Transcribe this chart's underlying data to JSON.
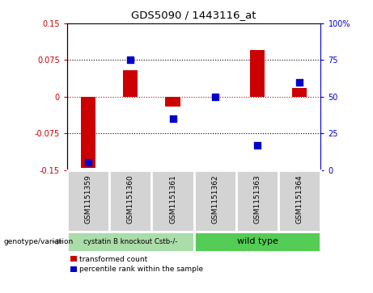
{
  "title": "GDS5090 / 1443116_at",
  "samples": [
    "GSM1151359",
    "GSM1151360",
    "GSM1151361",
    "GSM1151362",
    "GSM1151363",
    "GSM1151364"
  ],
  "red_values": [
    -0.145,
    0.055,
    -0.02,
    0.0,
    0.095,
    0.018
  ],
  "blue_values": [
    5,
    75,
    35,
    50,
    17,
    60
  ],
  "ylim_left": [
    -0.15,
    0.15
  ],
  "ylim_right": [
    0,
    100
  ],
  "yticks_left": [
    -0.15,
    -0.075,
    0,
    0.075,
    0.15
  ],
  "yticks_right": [
    0,
    25,
    50,
    75,
    100
  ],
  "ytick_labels_left": [
    "-0.15",
    "-0.075",
    "0",
    "0.075",
    "0.15"
  ],
  "ytick_labels_right": [
    "0",
    "25",
    "50",
    "75",
    "100%"
  ],
  "hlines": [
    0.075,
    0,
    -0.075
  ],
  "hline_colors": [
    "black",
    "#cc0000",
    "black"
  ],
  "hline_styles": [
    "dotted",
    "dotted",
    "dotted"
  ],
  "group1_label": "cystatin B knockout Cstb-/-",
  "group2_label": "wild type",
  "group1_color": "#aaddaa",
  "group2_color": "#55cc55",
  "sample_box_color": "#d3d3d3",
  "red_bar_color": "#cc0000",
  "blue_dot_color": "#0000cc",
  "legend_red_label": "transformed count",
  "legend_blue_label": "percentile rank within the sample",
  "bar_width": 0.35,
  "dot_size": 30,
  "left_label_color": "#cc0000",
  "right_label_color": "#0000cc",
  "genotype_label": "genotype/variation"
}
